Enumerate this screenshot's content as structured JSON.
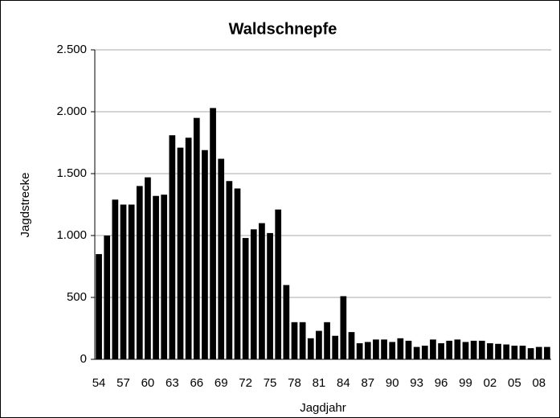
{
  "chart_data": {
    "type": "bar",
    "title": "Waldschnepfe",
    "x_label": "Jagdjahr",
    "y_label": "Jagdstrecke",
    "categories": [
      "54",
      null,
      null,
      "57",
      null,
      null,
      "60",
      null,
      null,
      "63",
      null,
      null,
      "66",
      null,
      null,
      "69",
      null,
      null,
      "72",
      null,
      null,
      "75",
      null,
      null,
      "78",
      null,
      null,
      "81",
      null,
      null,
      "84",
      null,
      null,
      "87",
      null,
      null,
      "90",
      null,
      null,
      "93",
      null,
      null,
      "96",
      null,
      null,
      "99",
      null,
      null,
      "02",
      null,
      null,
      "05",
      null,
      null,
      "08",
      null
    ],
    "values": [
      850,
      1000,
      1290,
      1250,
      1250,
      1400,
      1470,
      1320,
      1330,
      1810,
      1710,
      1790,
      1950,
      1690,
      2030,
      1620,
      1440,
      1380,
      980,
      1050,
      1100,
      1020,
      1210,
      600,
      300,
      300,
      170,
      230,
      300,
      190,
      510,
      220,
      130,
      140,
      160,
      160,
      140,
      170,
      150,
      100,
      110,
      160,
      130,
      150,
      160,
      140,
      150,
      150,
      130,
      125,
      120,
      110,
      110,
      90,
      100,
      100
    ],
    "color": "#000000",
    "ylim": [
      0,
      2500
    ],
    "yticks": [
      0,
      500,
      {
        "value": 1000,
        "label": "1.000"
      },
      {
        "value": 1500,
        "label": "1.500"
      },
      {
        "value": 2000,
        "label": "2.000"
      },
      {
        "value": 2500,
        "label": "2.500"
      }
    ],
    "grid": true
  }
}
